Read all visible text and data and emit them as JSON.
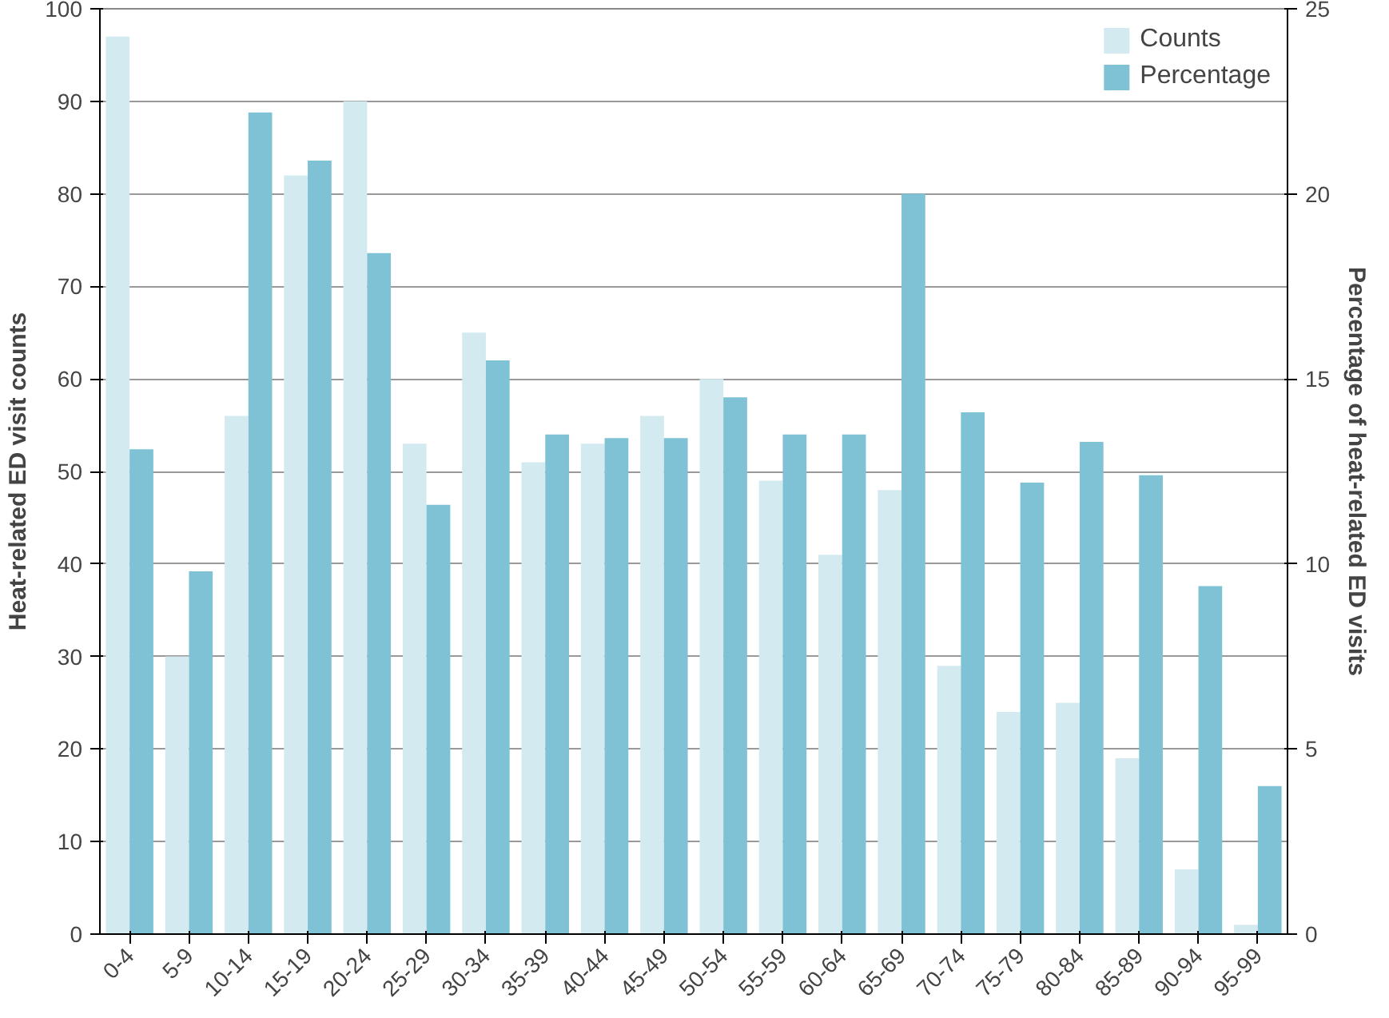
{
  "chart_data": {
    "type": "bar",
    "ylabel": "Heat-related ED visit counts",
    "y2label": "Percentage of heat-related ED visits",
    "categories": [
      "0-4",
      "5-9",
      "10-14",
      "15-19",
      "20-24",
      "25-29",
      "30-34",
      "35-39",
      "40-44",
      "45-49",
      "50-54",
      "55-59",
      "60-64",
      "65-69",
      "70-74",
      "75-79",
      "80-84",
      "85-89",
      "90-94",
      "95-99"
    ],
    "series": [
      {
        "name": "Counts",
        "color": "#d3ebf0",
        "values": [
          97,
          30,
          56,
          82,
          90,
          53,
          65,
          51,
          53,
          56,
          60,
          49,
          41,
          48,
          29,
          24,
          25,
          19,
          7,
          1
        ]
      },
      {
        "name": "Percentage",
        "color": "#7fc2d5",
        "axis": "y2",
        "values": [
          13.1,
          9.8,
          22.2,
          20.9,
          18.4,
          11.6,
          15.5,
          13.5,
          13.4,
          13.4,
          14.5,
          13.5,
          13.5,
          20.0,
          14.1,
          12.2,
          13.3,
          12.4,
          9.4,
          4.0
        ]
      }
    ],
    "ylim": [
      0,
      100
    ],
    "yticks": [
      0,
      10,
      20,
      30,
      40,
      50,
      60,
      70,
      80,
      90,
      100
    ],
    "y2lim": [
      0,
      25
    ],
    "y2ticks": [
      0,
      5,
      10,
      15,
      20,
      25
    ],
    "grid": "y",
    "legend": "top right"
  }
}
